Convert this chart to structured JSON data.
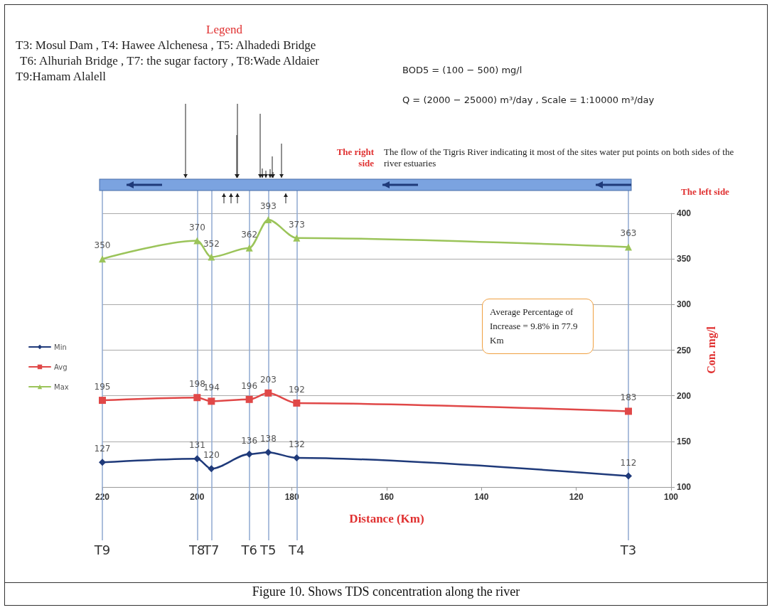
{
  "chart_data": {
    "type": "line",
    "title": "Figure 10. Shows TDS concentration along the river",
    "xlabel": "Distance (Km)",
    "ylabel": "Con. mg/l",
    "x": [
      220,
      200,
      197,
      189,
      185,
      179,
      109
    ],
    "series": [
      {
        "name": "Min",
        "color": "#1f3a7a",
        "marker": "diamond",
        "values": [
          127,
          131,
          120,
          136,
          138,
          132,
          112
        ]
      },
      {
        "name": "Avg",
        "color": "#e04848",
        "marker": "square",
        "values": [
          195,
          198,
          194,
          196,
          203,
          192,
          183
        ]
      },
      {
        "name": "Max",
        "color": "#9bc45a",
        "marker": "triangle",
        "values": [
          350,
          370,
          352,
          362,
          393,
          373,
          363
        ]
      }
    ],
    "xlim": [
      220,
      100
    ],
    "xticks": [
      220,
      200,
      180,
      160,
      140,
      120,
      100
    ],
    "ylim": [
      100,
      400
    ],
    "yticks": [
      100,
      150,
      200,
      250,
      300,
      350,
      400
    ],
    "grid": "y",
    "legend": "left",
    "data_labels": true,
    "line_style": "solid",
    "ref_lines": [
      {
        "axis": "x",
        "value": 220,
        "label": "T9",
        "color": "#8fa8d0"
      },
      {
        "axis": "x",
        "value": 200,
        "label": "T8",
        "color": "#8fa8d0"
      },
      {
        "axis": "x",
        "value": 197,
        "label": "T7",
        "color": "#8fa8d0"
      },
      {
        "axis": "x",
        "value": 189,
        "label": "T6",
        "color": "#8fa8d0"
      },
      {
        "axis": "x",
        "value": 185,
        "label": "T5",
        "color": "#8fa8d0"
      },
      {
        "axis": "x",
        "value": 179,
        "label": "T4",
        "color": "#8fa8d0"
      },
      {
        "axis": "x",
        "value": 109,
        "label": "T3",
        "color": "#8fa8d0"
      }
    ],
    "annotations": [
      "Legend",
      "T3: Mosul Dam , T4: Hawee Alchenesa , T5: Alhadedi Bridge",
      "T6: Alhuriah Bridge , T7: the sugar factory , T8:Wade Aldaier",
      "T9:Hamam Alalell",
      "BOD5 = (100 − 500) mg/l",
      "Q = (2000 − 25000) m³/day , Scale = 1:10000 m³/day",
      "The right side",
      "The flow of the Tigris River indicating it most of the sites water put points on both sides of the river estuaries",
      "The left side",
      "Average Percentage of Increase = 9.8% in 77.9 Km"
    ]
  }
}
